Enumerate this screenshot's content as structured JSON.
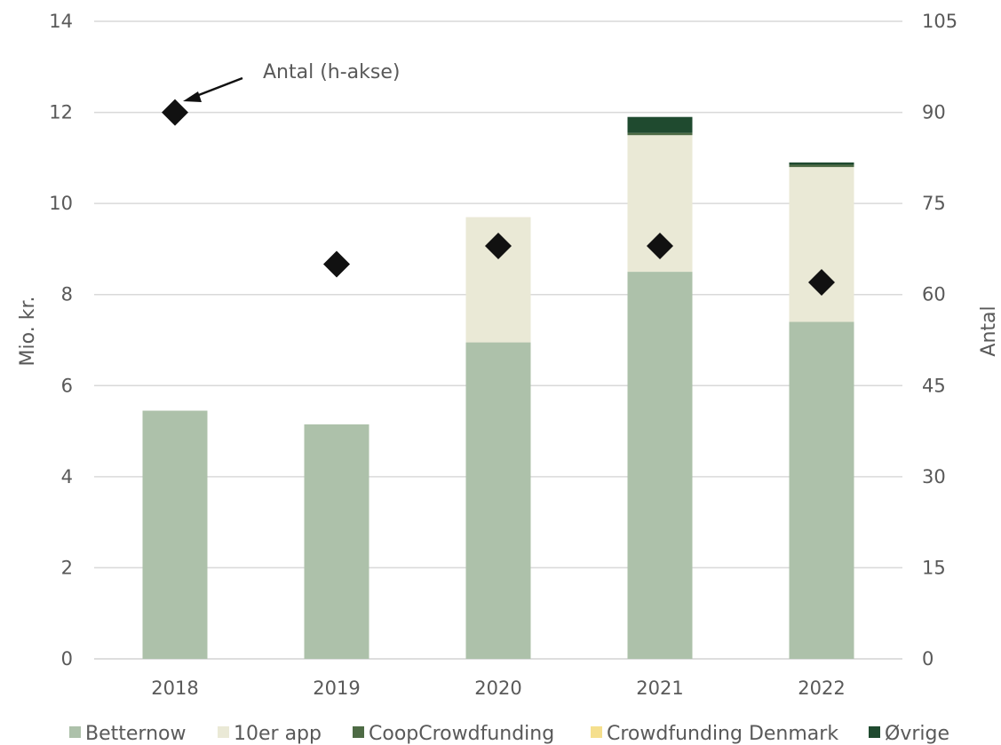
{
  "chart_data": {
    "type": "bar",
    "stacked": true,
    "categories": [
      "2018",
      "2019",
      "2020",
      "2021",
      "2022"
    ],
    "series": [
      {
        "name": "Betternow",
        "color": "#adc1aa",
        "values": [
          5.45,
          5.15,
          6.95,
          8.5,
          7.4
        ]
      },
      {
        "name": "10er app",
        "color": "#eae9d6",
        "values": [
          0,
          0,
          2.75,
          3.0,
          3.4
        ]
      },
      {
        "name": "CoopCrowdfunding",
        "color": "#4e6b45",
        "values": [
          0,
          0,
          0,
          0.05,
          0.05
        ]
      },
      {
        "name": "Crowdfunding Denmark",
        "color": "#f5df8d",
        "values": [
          0,
          0,
          0,
          0,
          0
        ]
      },
      {
        "name": "Øvrige",
        "color": "#1f4a2f",
        "values": [
          0,
          0,
          0,
          0.35,
          0.05
        ]
      }
    ],
    "secondary_series": {
      "type": "scatter",
      "marker": "diamond",
      "color": "#111111",
      "axis": "right",
      "values": [
        90,
        65,
        68,
        68,
        62
      ]
    },
    "ylabel": "Mio. kr.",
    "ylim": [
      0,
      14
    ],
    "yticks": [
      "0",
      "2",
      "4",
      "6",
      "8",
      "10",
      "12",
      "14"
    ],
    "y2label": "Antal",
    "y2lim": [
      0,
      105
    ],
    "y2ticks": [
      "0",
      "15",
      "30",
      "45",
      "60",
      "75",
      "90",
      "105"
    ],
    "annotation": "Antal (h-akse)",
    "grid": true,
    "legend_position": "bottom"
  }
}
